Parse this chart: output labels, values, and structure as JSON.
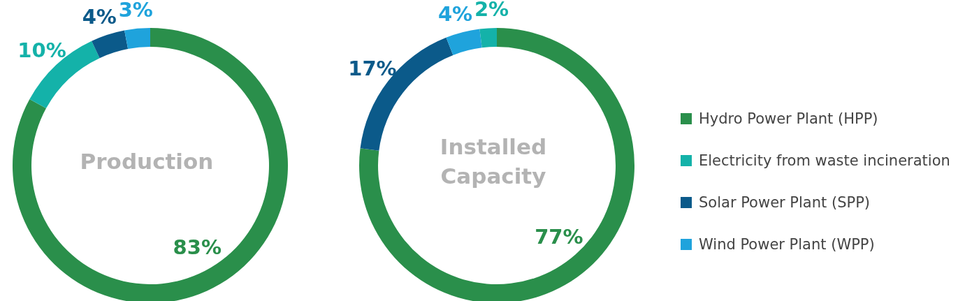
{
  "chart_data": [
    {
      "type": "donut",
      "title": "Production",
      "categories": [
        "Hydro Power Plant (HPP)",
        "Electricity from waste incineration",
        "Solar Power Plant (SPP)",
        "Wind Power Plant (WPP)"
      ],
      "values": [
        83,
        10,
        4,
        3
      ],
      "colors": [
        "#2a8f4b",
        "#14b2a9",
        "#0b5a8a",
        "#1fa3dc"
      ],
      "value_labels": [
        "83%",
        "10%",
        "4%",
        "3%"
      ],
      "legend": "right"
    },
    {
      "type": "donut",
      "title": "Installed Capacity",
      "categories": [
        null,
        null,
        null,
        null
      ],
      "values": [
        77,
        17,
        4,
        2
      ],
      "colors": [
        "#2a8f4b",
        "#0b5a8a",
        "#1fa3dc",
        "#14b2a9"
      ],
      "value_labels": [
        "77%",
        "17%",
        "4%",
        "2%"
      ]
    }
  ]
}
